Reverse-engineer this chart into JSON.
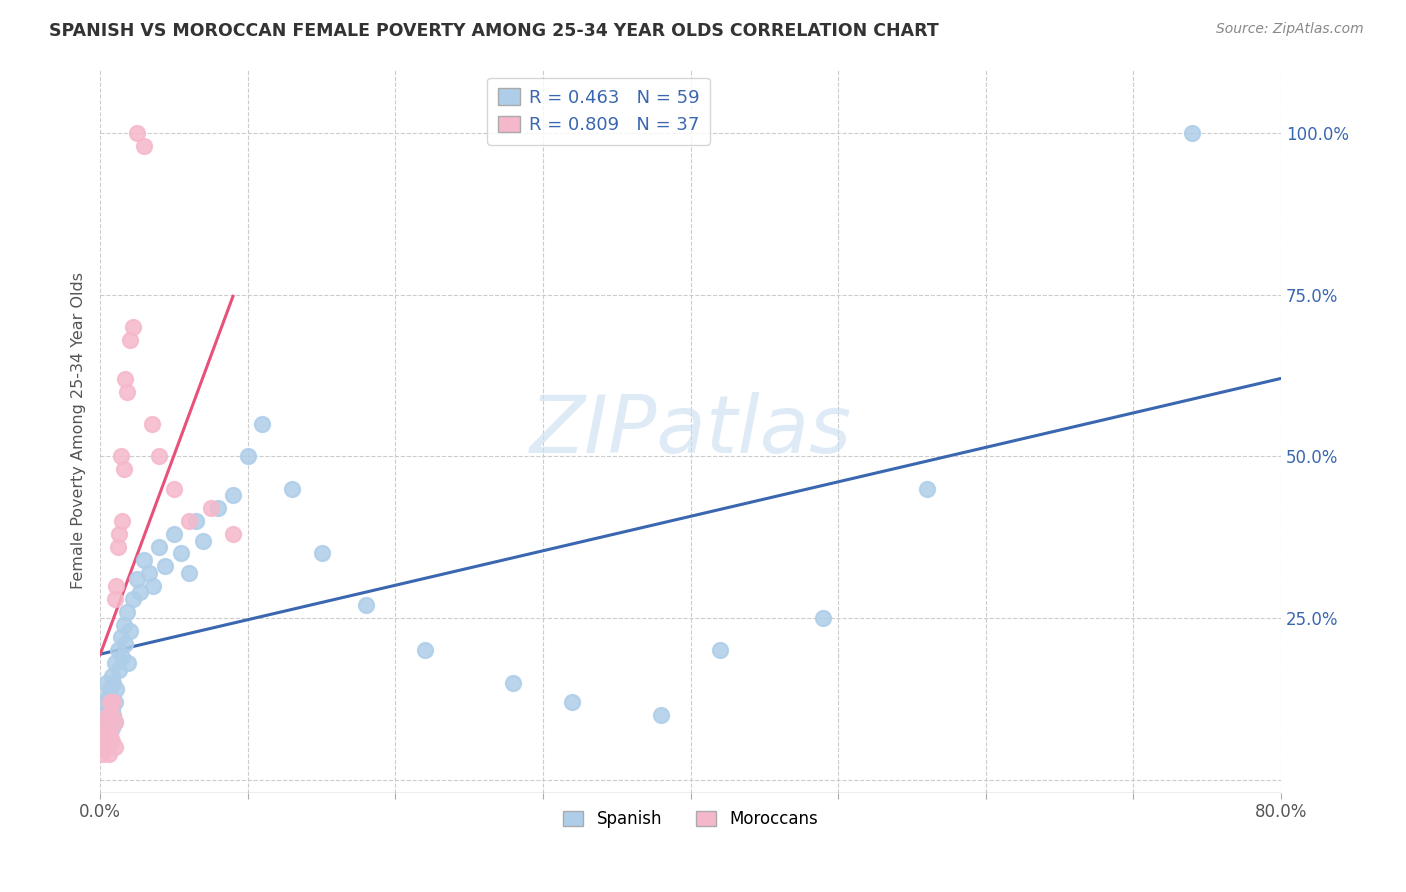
{
  "title": "SPANISH VS MOROCCAN FEMALE POVERTY AMONG 25-34 YEAR OLDS CORRELATION CHART",
  "source": "Source: ZipAtlas.com",
  "ylabel": "Female Poverty Among 25-34 Year Olds",
  "xlim": [
    0.0,
    0.8
  ],
  "ylim": [
    -0.02,
    1.1
  ],
  "x_ticks": [
    0.0,
    0.1,
    0.2,
    0.3,
    0.4,
    0.5,
    0.6,
    0.7,
    0.8
  ],
  "y_ticks_right": [
    0.0,
    0.25,
    0.5,
    0.75,
    1.0
  ],
  "y_tick_labels_right": [
    "",
    "25.0%",
    "50.0%",
    "75.0%",
    "100.0%"
  ],
  "spanish_R": 0.463,
  "spanish_N": 59,
  "moroccan_R": 0.809,
  "moroccan_N": 37,
  "spanish_color": "#aecde8",
  "moroccan_color": "#f5b8cb",
  "spanish_line_color": "#3a67b0",
  "moroccan_line_color": "#e8527a",
  "watermark": "ZIPatlas",
  "background_color": "#ffffff",
  "spanish_x": [
    0.001,
    0.002,
    0.003,
    0.003,
    0.004,
    0.004,
    0.005,
    0.005,
    0.005,
    0.006,
    0.006,
    0.007,
    0.007,
    0.008,
    0.008,
    0.008,
    0.009,
    0.009,
    0.01,
    0.01,
    0.01,
    0.011,
    0.012,
    0.013,
    0.014,
    0.015,
    0.016,
    0.017,
    0.018,
    0.019,
    0.02,
    0.022,
    0.025,
    0.027,
    0.03,
    0.033,
    0.036,
    0.04,
    0.044,
    0.05,
    0.055,
    0.06,
    0.065,
    0.07,
    0.08,
    0.09,
    0.1,
    0.11,
    0.13,
    0.15,
    0.18,
    0.22,
    0.28,
    0.32,
    0.38,
    0.42,
    0.49,
    0.56,
    0.74
  ],
  "spanish_y": [
    0.1,
    0.08,
    0.12,
    0.09,
    0.15,
    0.06,
    0.1,
    0.08,
    0.13,
    0.07,
    0.12,
    0.1,
    0.14,
    0.08,
    0.11,
    0.16,
    0.1,
    0.15,
    0.09,
    0.12,
    0.18,
    0.14,
    0.2,
    0.17,
    0.22,
    0.19,
    0.24,
    0.21,
    0.26,
    0.18,
    0.23,
    0.28,
    0.31,
    0.29,
    0.34,
    0.32,
    0.3,
    0.36,
    0.33,
    0.38,
    0.35,
    0.32,
    0.4,
    0.37,
    0.42,
    0.44,
    0.5,
    0.55,
    0.45,
    0.35,
    0.27,
    0.2,
    0.15,
    0.12,
    0.1,
    0.2,
    0.25,
    0.45,
    1.0
  ],
  "moroccan_x": [
    0.001,
    0.002,
    0.002,
    0.003,
    0.003,
    0.004,
    0.004,
    0.005,
    0.005,
    0.006,
    0.006,
    0.007,
    0.007,
    0.008,
    0.008,
    0.009,
    0.01,
    0.01,
    0.01,
    0.011,
    0.012,
    0.013,
    0.014,
    0.015,
    0.016,
    0.017,
    0.018,
    0.02,
    0.022,
    0.025,
    0.03,
    0.035,
    0.04,
    0.05,
    0.06,
    0.075,
    0.09
  ],
  "moroccan_y": [
    0.05,
    0.07,
    0.04,
    0.06,
    0.09,
    0.05,
    0.08,
    0.06,
    0.1,
    0.04,
    0.08,
    0.07,
    0.12,
    0.06,
    0.1,
    0.12,
    0.05,
    0.09,
    0.28,
    0.3,
    0.36,
    0.38,
    0.5,
    0.4,
    0.48,
    0.62,
    0.6,
    0.68,
    0.7,
    1.0,
    0.98,
    0.55,
    0.5,
    0.45,
    0.4,
    0.42,
    0.38
  ]
}
